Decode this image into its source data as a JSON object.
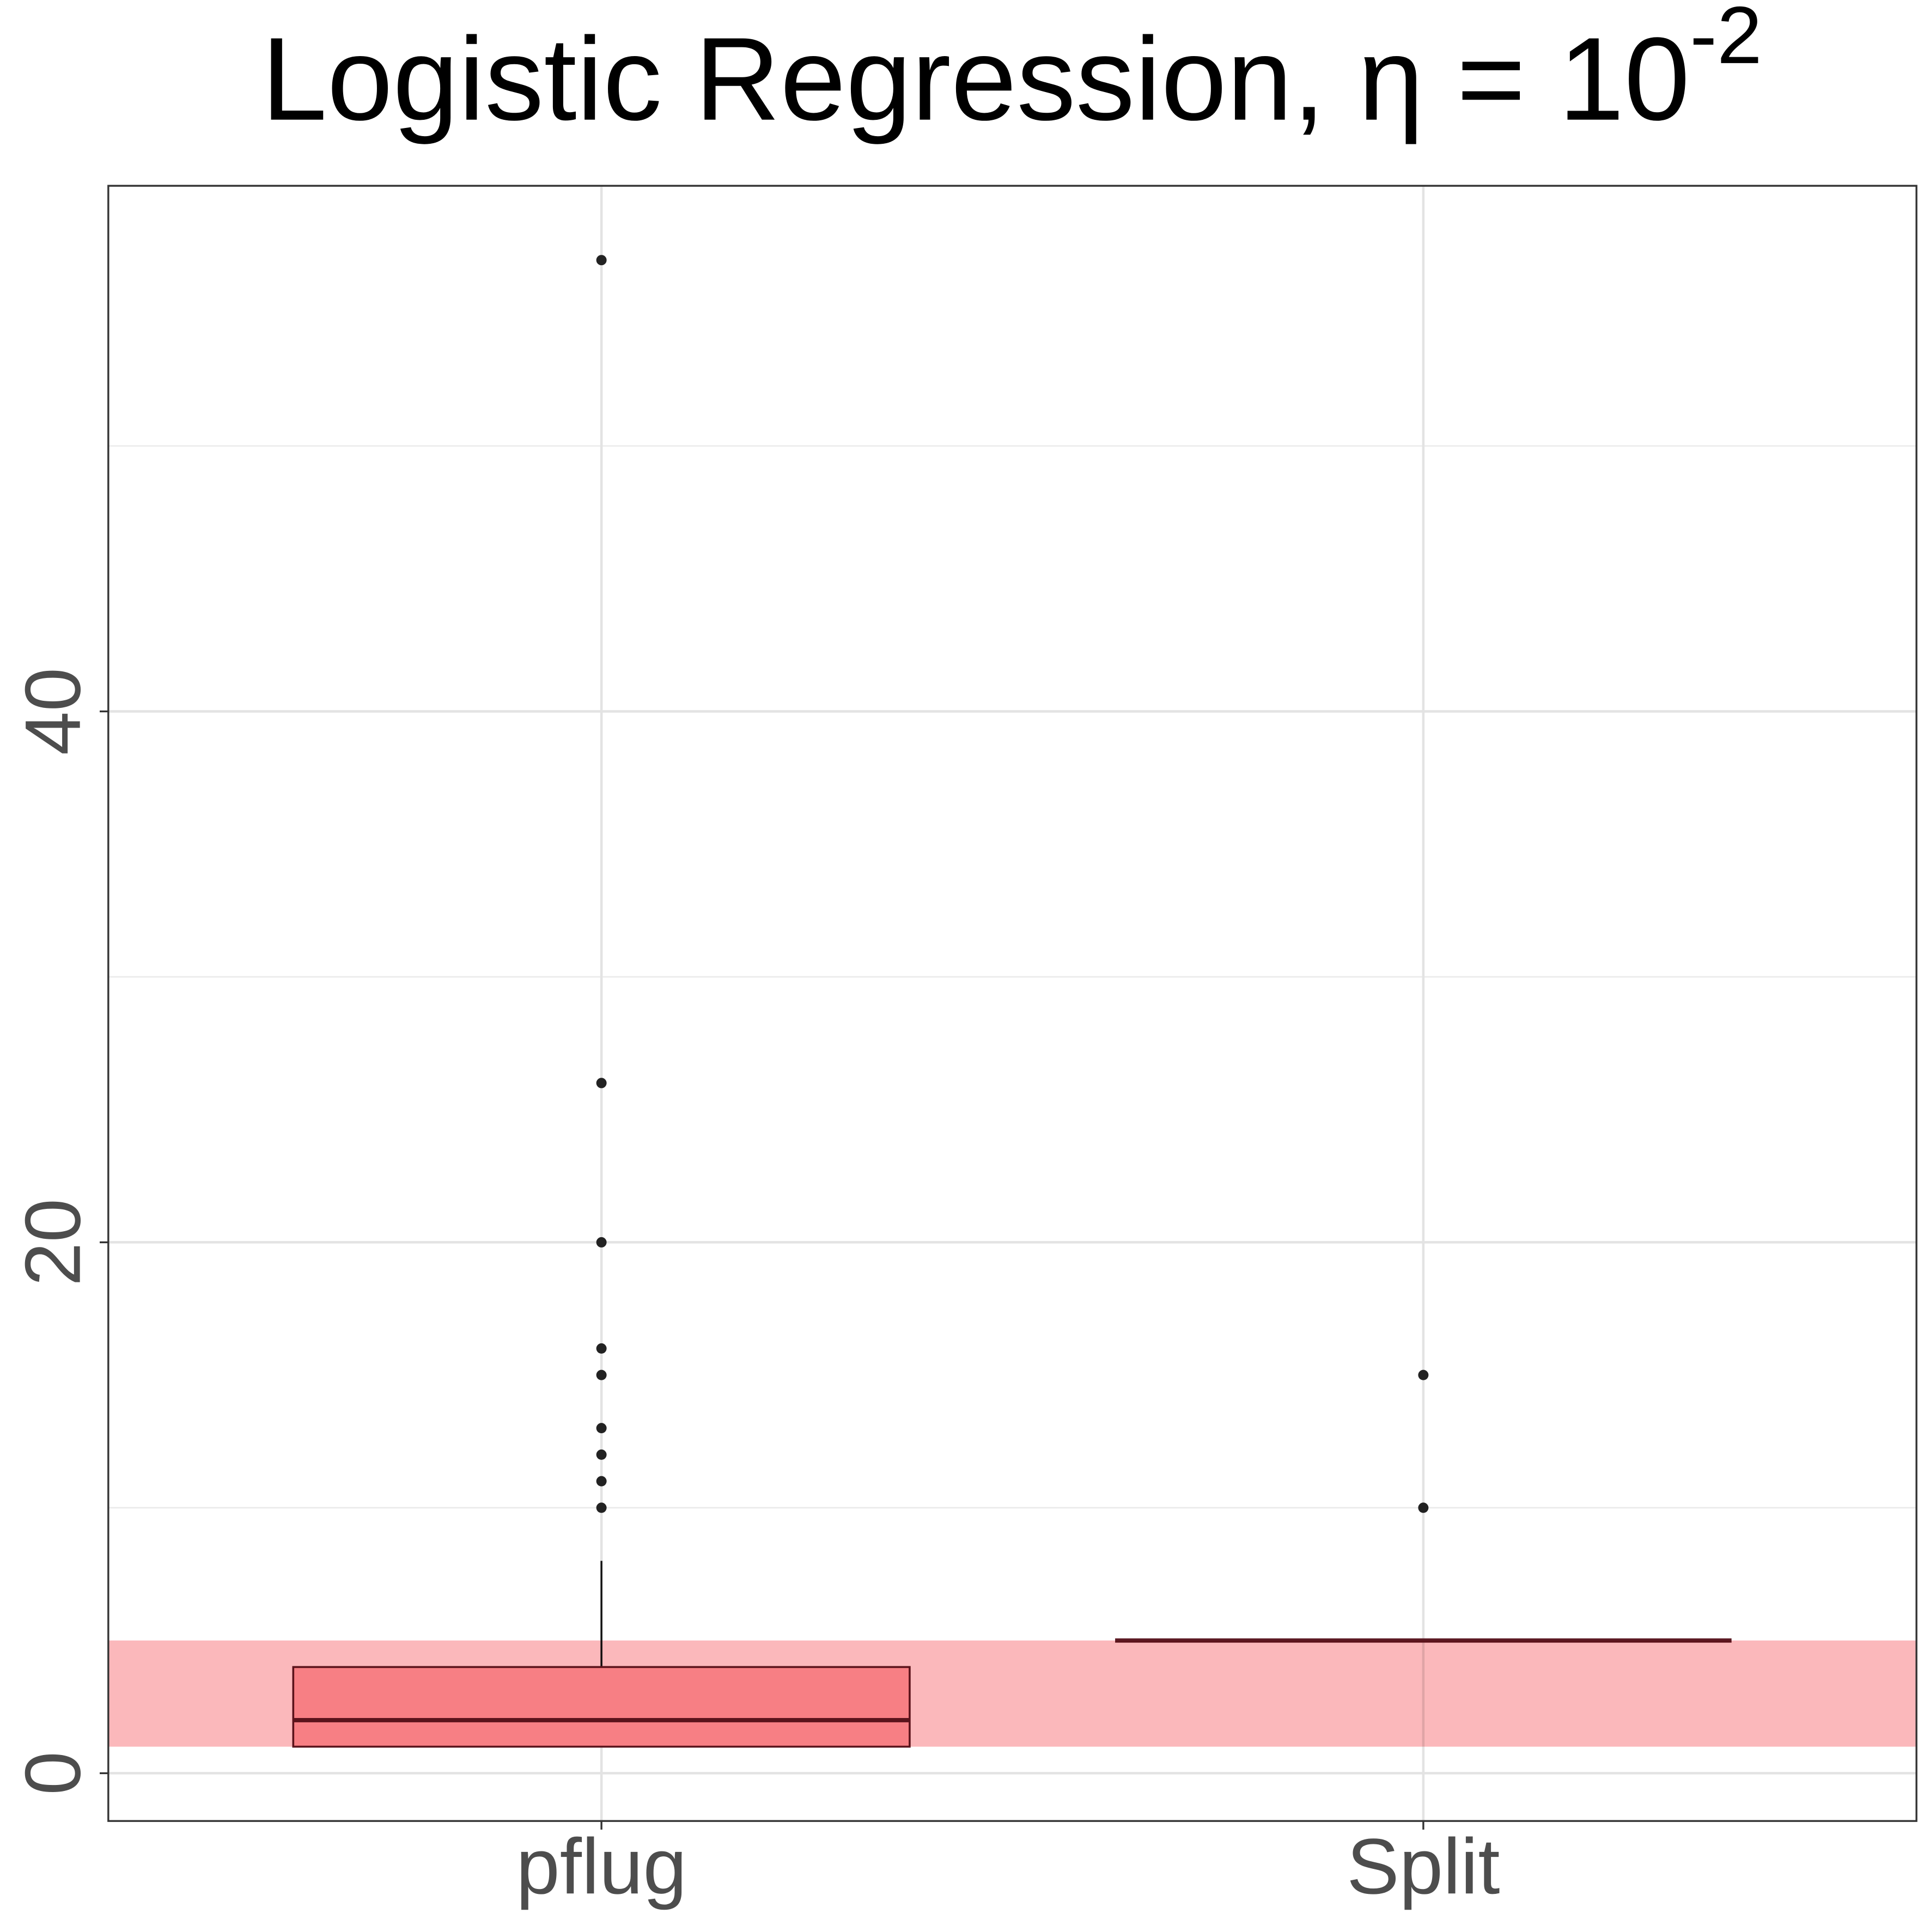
{
  "chart_data": {
    "type": "box",
    "title": "Logistic Regression, η = 10",
    "title_exponent": "-2",
    "categories": [
      "pflug",
      "Split"
    ],
    "boxes": [
      {
        "min": 1,
        "q1": 1,
        "median": 2,
        "q3": 4,
        "max": 8,
        "outliers": [
          10,
          11,
          12,
          13,
          15,
          16,
          20,
          26,
          57
        ]
      },
      {
        "min": 5,
        "q1": 5,
        "median": 5,
        "q3": 5,
        "max": 5,
        "outliers": [
          10,
          15
        ]
      }
    ],
    "box_fill": "#fbb0b4",
    "box_stroke": "#5c1a24",
    "point_color": "#222222",
    "band": [
      1,
      5
    ],
    "band_color": "#fbb0b4",
    "ylim": [
      -1.8,
      59.8
    ],
    "yticks": [
      0,
      20,
      40
    ],
    "minor_yticks": [
      10,
      30,
      50
    ],
    "grid": true
  }
}
